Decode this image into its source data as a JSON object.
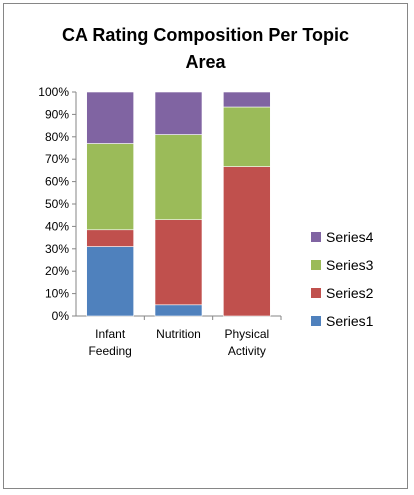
{
  "chart_data": {
    "type": "bar",
    "stacked": "percent",
    "title_lines": [
      "CA Rating Composition Per Topic",
      "Area"
    ],
    "categories": [
      [
        "Infant",
        "Feeding"
      ],
      [
        "Nutrition"
      ],
      [
        "Physical",
        "Activity"
      ]
    ],
    "series": [
      {
        "name": "Series1",
        "color": "#4F81BD",
        "values": [
          31,
          5,
          0
        ]
      },
      {
        "name": "Series2",
        "color": "#C0504D",
        "values": [
          7.5,
          38,
          66.7
        ]
      },
      {
        "name": "Series3",
        "color": "#9BBB59",
        "values": [
          38.5,
          38,
          26.6
        ]
      },
      {
        "name": "Series4",
        "color": "#8064A2",
        "values": [
          23,
          19,
          6.7
        ]
      }
    ],
    "ylim": [
      0,
      100
    ],
    "yticks": [
      "0%",
      "10%",
      "20%",
      "30%",
      "40%",
      "50%",
      "60%",
      "70%",
      "80%",
      "90%",
      "100%"
    ],
    "grid": false,
    "legend_position": "right"
  }
}
